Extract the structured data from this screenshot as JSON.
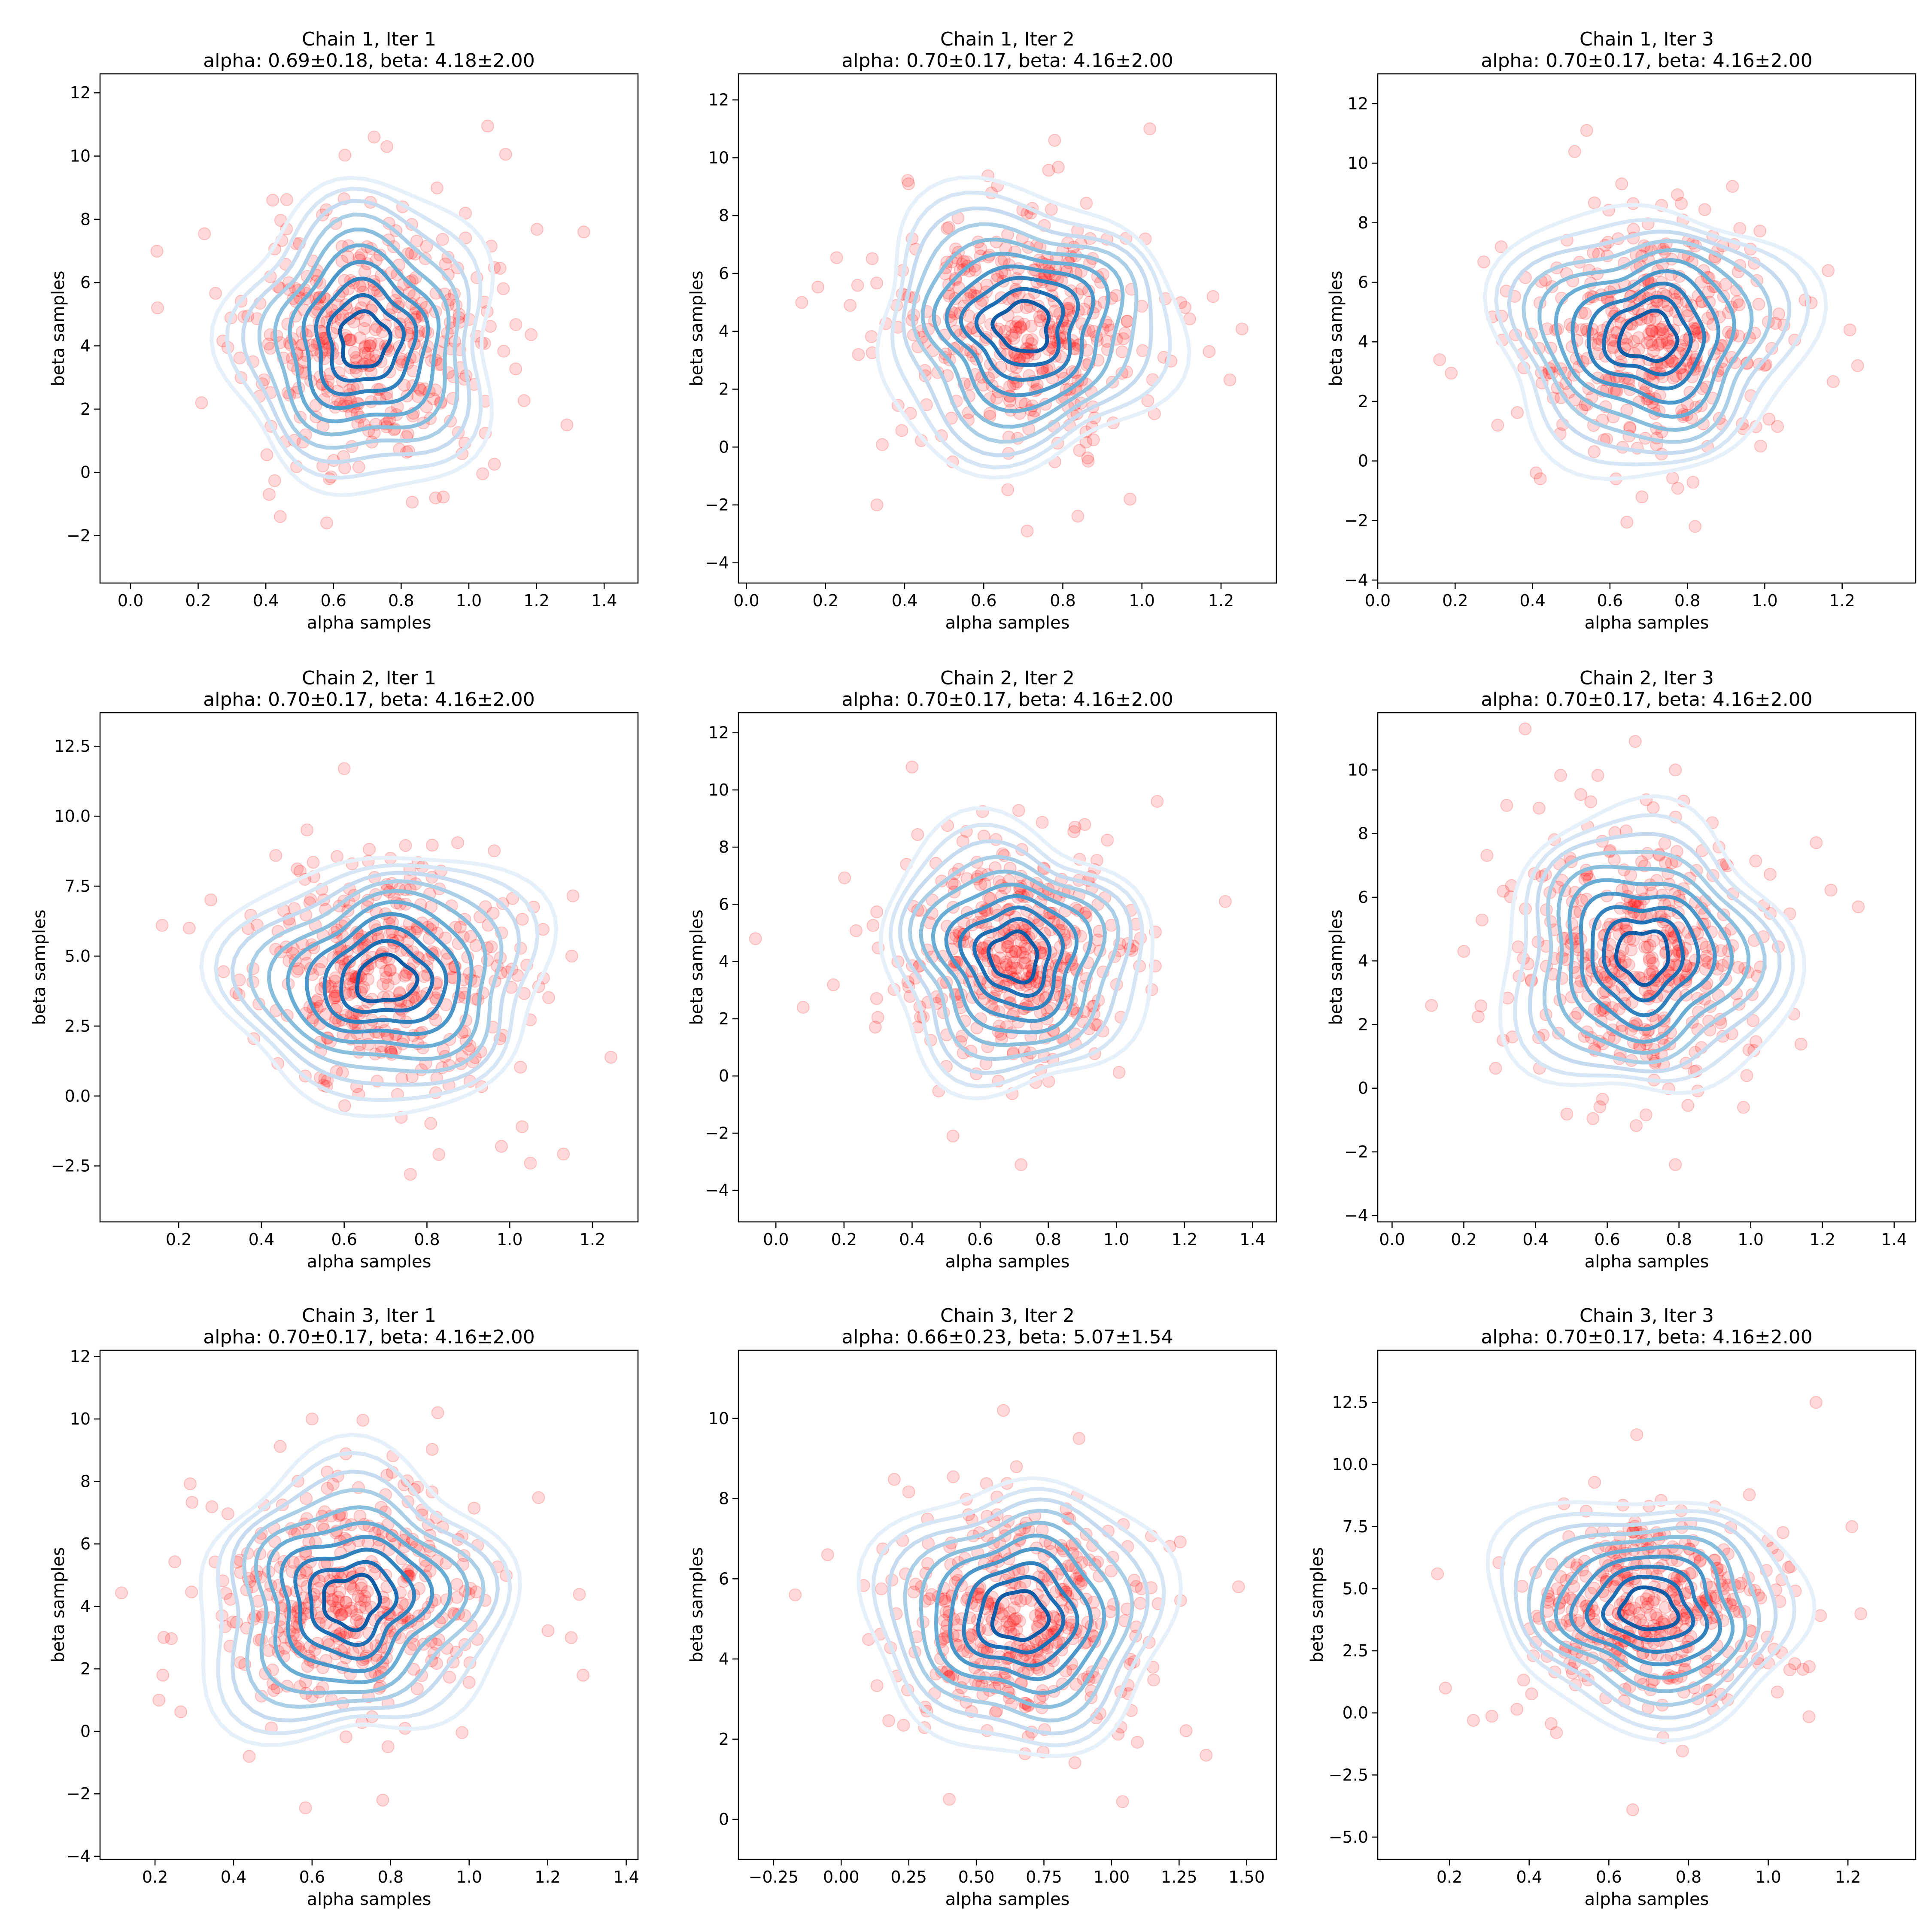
{
  "colors": {
    "point": "#ff0000",
    "contour_low": "#deebf7",
    "contour_high": "#08519c",
    "axis": "#000000"
  },
  "chart_data": [
    {
      "type": "scatter",
      "title": "Chain 1, Iter 1",
      "subtitle": "alpha: 0.69±0.18, beta: 4.18±2.00",
      "xlabel": "alpha samples",
      "ylabel": "beta samples",
      "xlim": [
        -0.09,
        1.5
      ],
      "ylim": [
        -3.5,
        12.6
      ],
      "xticks": [
        0.0,
        0.2,
        0.4,
        0.6,
        0.8,
        1.0,
        1.2,
        1.4
      ],
      "xtick_labels": [
        "0.0",
        "0.2",
        "0.4",
        "0.6",
        "0.8",
        "1.0",
        "1.2",
        "1.4"
      ],
      "yticks": [
        -2,
        0,
        2,
        4,
        6,
        8,
        10,
        12
      ],
      "ytick_labels": [
        "−2",
        "0",
        "2",
        "4",
        "6",
        "8",
        "10",
        "12"
      ],
      "mean": [
        0.69,
        4.18
      ],
      "std": [
        0.18,
        2.0
      ],
      "n_points": 420,
      "seed": 11,
      "extreme_points": [
        [
          0.08,
          5.2
        ],
        [
          1.34,
          7.6
        ],
        [
          0.72,
          10.6
        ],
        [
          0.41,
          -0.7
        ],
        [
          0.58,
          -1.6
        ],
        [
          1.29,
          1.5
        ],
        [
          0.21,
          2.2
        ]
      ]
    },
    {
      "type": "scatter",
      "title": "Chain 1, Iter 2",
      "subtitle": "alpha: 0.70±0.17, beta: 4.16±2.00",
      "xlabel": "alpha samples",
      "ylabel": "beta samples",
      "xlim": [
        -0.02,
        1.34
      ],
      "ylim": [
        -4.7,
        12.9
      ],
      "xticks": [
        0.0,
        0.2,
        0.4,
        0.6,
        0.8,
        1.0,
        1.2
      ],
      "xtick_labels": [
        "0.0",
        "0.2",
        "0.4",
        "0.6",
        "0.8",
        "1.0",
        "1.2"
      ],
      "yticks": [
        -4,
        -2,
        0,
        2,
        4,
        6,
        8,
        10,
        12
      ],
      "ytick_labels": [
        "−4",
        "−2",
        "0",
        "2",
        "4",
        "6",
        "8",
        "10",
        "12"
      ],
      "mean": [
        0.7,
        4.16
      ],
      "std": [
        0.17,
        2.0
      ],
      "n_points": 420,
      "seed": 22,
      "extreme_points": [
        [
          0.14,
          5.0
        ],
        [
          1.02,
          11.0
        ],
        [
          0.33,
          -2.0
        ],
        [
          0.71,
          -2.9
        ],
        [
          1.17,
          3.3
        ],
        [
          0.97,
          -1.8
        ],
        [
          0.41,
          9.1
        ]
      ]
    },
    {
      "type": "scatter",
      "title": "Chain 1, Iter 3",
      "subtitle": "alpha: 0.70±0.17, beta: 4.16±2.00",
      "xlabel": "alpha samples",
      "ylabel": "beta samples",
      "xlim": [
        0.0,
        1.39
      ],
      "ylim": [
        -4.1,
        13.0
      ],
      "xticks": [
        0.0,
        0.2,
        0.4,
        0.6,
        0.8,
        1.0,
        1.2
      ],
      "xtick_labels": [
        "0.0",
        "0.2",
        "0.4",
        "0.6",
        "0.8",
        "1.0",
        "1.2"
      ],
      "yticks": [
        -4,
        -2,
        0,
        2,
        4,
        6,
        8,
        10,
        12
      ],
      "ytick_labels": [
        "−4",
        "−2",
        "0",
        "2",
        "4",
        "6",
        "8",
        "10",
        "12"
      ],
      "mean": [
        0.7,
        4.16
      ],
      "std": [
        0.17,
        2.0
      ],
      "n_points": 420,
      "seed": 33,
      "extreme_points": [
        [
          0.16,
          3.4
        ],
        [
          0.54,
          11.1
        ],
        [
          1.24,
          3.2
        ],
        [
          0.42,
          -0.6
        ],
        [
          0.82,
          -2.2
        ],
        [
          0.31,
          1.2
        ],
        [
          1.22,
          4.4
        ]
      ]
    },
    {
      "type": "scatter",
      "title": "Chain 2, Iter 1",
      "subtitle": "alpha: 0.70±0.17, beta: 4.16±2.00",
      "xlabel": "alpha samples",
      "ylabel": "beta samples",
      "xlim": [
        0.01,
        1.31
      ],
      "ylim": [
        -4.5,
        13.7
      ],
      "xticks": [
        0.2,
        0.4,
        0.6,
        0.8,
        1.0,
        1.2
      ],
      "xtick_labels": [
        "0.2",
        "0.4",
        "0.6",
        "0.8",
        "1.0",
        "1.2"
      ],
      "yticks": [
        -2.5,
        0.0,
        2.5,
        5.0,
        7.5,
        10.0,
        12.5
      ],
      "ytick_labels": [
        "−2.5",
        "0.0",
        "2.5",
        "5.0",
        "7.5",
        "10.0",
        "12.5"
      ],
      "mean": [
        0.7,
        4.16
      ],
      "std": [
        0.17,
        2.0
      ],
      "n_points": 420,
      "seed": 44,
      "extreme_points": [
        [
          0.6,
          11.7
        ],
        [
          0.16,
          6.1
        ],
        [
          0.76,
          -2.8
        ],
        [
          1.05,
          -2.4
        ],
        [
          1.15,
          5.0
        ],
        [
          0.98,
          -1.8
        ],
        [
          1.03,
          -1.1
        ]
      ]
    },
    {
      "type": "scatter",
      "title": "Chain 2, Iter 2",
      "subtitle": "alpha: 0.70±0.17, beta: 4.16±2.00",
      "xlabel": "alpha samples",
      "ylabel": "beta samples",
      "xlim": [
        -0.11,
        1.47
      ],
      "ylim": [
        -5.1,
        12.7
      ],
      "xticks": [
        0.0,
        0.2,
        0.4,
        0.6,
        0.8,
        1.0,
        1.2,
        1.4
      ],
      "xtick_labels": [
        "0.0",
        "0.2",
        "0.4",
        "0.6",
        "0.8",
        "1.0",
        "1.2",
        "1.4"
      ],
      "yticks": [
        -4,
        -2,
        0,
        2,
        4,
        6,
        8,
        10,
        12
      ],
      "ytick_labels": [
        "−4",
        "−2",
        "0",
        "2",
        "4",
        "6",
        "8",
        "10",
        "12"
      ],
      "mean": [
        0.7,
        4.16
      ],
      "std": [
        0.17,
        2.0
      ],
      "n_points": 420,
      "seed": 55,
      "extreme_points": [
        [
          -0.06,
          4.8
        ],
        [
          0.08,
          2.4
        ],
        [
          1.32,
          6.1
        ],
        [
          0.72,
          -3.1
        ],
        [
          0.52,
          -2.1
        ],
        [
          0.4,
          10.8
        ],
        [
          1.12,
          9.6
        ]
      ]
    },
    {
      "type": "scatter",
      "title": "Chain 2, Iter 3",
      "subtitle": "alpha: 0.70±0.17, beta: 4.16±2.00",
      "xlabel": "alpha samples",
      "ylabel": "beta samples",
      "xlim": [
        -0.04,
        1.46
      ],
      "ylim": [
        -4.2,
        11.8
      ],
      "xticks": [
        0.0,
        0.2,
        0.4,
        0.6,
        0.8,
        1.0,
        1.2,
        1.4
      ],
      "xtick_labels": [
        "0.0",
        "0.2",
        "0.4",
        "0.6",
        "0.8",
        "1.0",
        "1.2",
        "1.4"
      ],
      "yticks": [
        -4,
        -2,
        0,
        2,
        4,
        6,
        8,
        10
      ],
      "ytick_labels": [
        "−4",
        "−2",
        "0",
        "2",
        "4",
        "6",
        "8",
        "10"
      ],
      "mean": [
        0.7,
        4.16
      ],
      "std": [
        0.17,
        2.0
      ],
      "n_points": 420,
      "seed": 66,
      "extreme_points": [
        [
          0.11,
          2.6
        ],
        [
          1.3,
          5.7
        ],
        [
          0.79,
          10.0
        ],
        [
          0.79,
          -2.4
        ],
        [
          0.98,
          -0.6
        ],
        [
          0.41,
          8.8
        ],
        [
          0.2,
          4.3
        ]
      ]
    },
    {
      "type": "scatter",
      "title": "Chain 3, Iter 1",
      "subtitle": "alpha: 0.70±0.17, beta: 4.16±2.00",
      "xlabel": "alpha samples",
      "ylabel": "beta samples",
      "xlim": [
        0.06,
        1.43
      ],
      "ylim": [
        -4.1,
        12.2
      ],
      "xticks": [
        0.2,
        0.4,
        0.6,
        0.8,
        1.0,
        1.2,
        1.4
      ],
      "xtick_labels": [
        "0.2",
        "0.4",
        "0.6",
        "0.8",
        "1.0",
        "1.2",
        "1.4"
      ],
      "yticks": [
        -4,
        -2,
        0,
        2,
        4,
        6,
        8,
        10,
        12
      ],
      "ytick_labels": [
        "−4",
        "−2",
        "0",
        "2",
        "4",
        "6",
        "8",
        "10",
        "12"
      ],
      "mean": [
        0.7,
        4.16
      ],
      "std": [
        0.17,
        2.0
      ],
      "n_points": 420,
      "seed": 77,
      "extreme_points": [
        [
          0.21,
          1.0
        ],
        [
          0.92,
          10.2
        ],
        [
          1.26,
          3.0
        ],
        [
          0.78,
          -2.2
        ],
        [
          0.22,
          1.8
        ],
        [
          0.6,
          10.0
        ],
        [
          0.44,
          -0.8
        ]
      ]
    },
    {
      "type": "scatter",
      "title": "Chain 3, Iter 2",
      "subtitle": "alpha: 0.66±0.23, beta: 5.07±1.54",
      "xlabel": "alpha samples",
      "ylabel": "beta samples",
      "xlim": [
        -0.38,
        1.61
      ],
      "ylim": [
        -1.0,
        11.7
      ],
      "xticks": [
        -0.25,
        0.0,
        0.25,
        0.5,
        0.75,
        1.0,
        1.25,
        1.5
      ],
      "xtick_labels": [
        "−0.25",
        "0.00",
        "0.25",
        "0.50",
        "0.75",
        "1.00",
        "1.25",
        "1.50"
      ],
      "yticks": [
        0,
        2,
        4,
        6,
        8,
        10
      ],
      "ytick_labels": [
        "0",
        "2",
        "4",
        "6",
        "8",
        "10"
      ],
      "mean": [
        0.66,
        5.07
      ],
      "std": [
        0.23,
        1.54
      ],
      "n_points": 420,
      "seed": 88,
      "extreme_points": [
        [
          -0.17,
          5.6
        ],
        [
          0.6,
          10.2
        ],
        [
          1.47,
          5.8
        ],
        [
          0.4,
          0.5
        ],
        [
          1.35,
          1.6
        ],
        [
          0.88,
          9.5
        ],
        [
          -0.05,
          6.6
        ]
      ]
    },
    {
      "type": "scatter",
      "title": "Chain 3, Iter 3",
      "subtitle": "alpha: 0.70±0.17, beta: 4.16±2.00",
      "xlabel": "alpha samples",
      "ylabel": "beta samples",
      "xlim": [
        0.02,
        1.37
      ],
      "ylim": [
        -5.9,
        14.6
      ],
      "xticks": [
        0.2,
        0.4,
        0.6,
        0.8,
        1.0,
        1.2
      ],
      "xtick_labels": [
        "0.2",
        "0.4",
        "0.6",
        "0.8",
        "1.0",
        "1.2"
      ],
      "yticks": [
        -5.0,
        -2.5,
        0.0,
        2.5,
        5.0,
        7.5,
        10.0,
        12.5
      ],
      "ytick_labels": [
        "−5.0",
        "−2.5",
        "0.0",
        "2.5",
        "5.0",
        "7.5",
        "10.0",
        "12.5"
      ],
      "mean": [
        0.7,
        4.16
      ],
      "std": [
        0.17,
        2.0
      ],
      "n_points": 420,
      "seed": 99,
      "extreme_points": [
        [
          1.12,
          12.5
        ],
        [
          0.66,
          -3.9
        ],
        [
          0.17,
          5.6
        ],
        [
          1.21,
          7.5
        ],
        [
          0.67,
          11.2
        ],
        [
          0.19,
          1.0
        ],
        [
          0.26,
          -0.3
        ]
      ]
    }
  ]
}
